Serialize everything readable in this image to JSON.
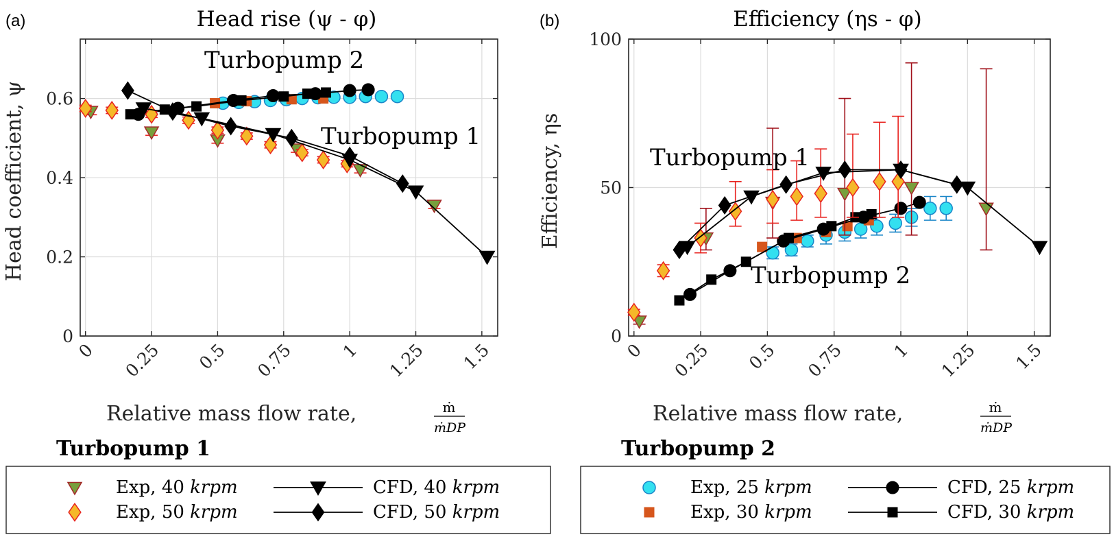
{
  "panels": [
    {
      "label": "(a)",
      "title": "Head rise (ψ - φ)",
      "ylabel": "Head coefficient, ψ",
      "xlabel": "Relative mass flow rate,"
    },
    {
      "label": "(b)",
      "title": "Efficiency (ηs - φ)",
      "ylabel": "Efficiency, ηs",
      "xlabel": "Relative mass flow rate,"
    }
  ],
  "xlabel_fraction": {
    "num": "ṁ",
    "den": "ṁDP"
  },
  "annotations": {
    "a": [
      "Turbopump 2",
      "Turbopump 1"
    ],
    "b": [
      "Turbopump 1",
      "Turbopump 2"
    ]
  },
  "legend": {
    "tp1_title": "Turbopump 1",
    "tp2_title": "Turbopump 2",
    "tp1": [
      {
        "label": "Exp, 40",
        "unit": "krpm"
      },
      {
        "label": "CFD, 40",
        "unit": "krpm"
      },
      {
        "label": "Exp, 50",
        "unit": "krpm"
      },
      {
        "label": "CFD, 50",
        "unit": "krpm"
      }
    ],
    "tp2": [
      {
        "label": "Exp, 25",
        "unit": "krpm"
      },
      {
        "label": "CFD, 25",
        "unit": "krpm"
      },
      {
        "label": "Exp, 30",
        "unit": "krpm"
      },
      {
        "label": "CFD, 30",
        "unit": "krpm"
      }
    ]
  },
  "colors": {
    "tri_fill": "#77a03c",
    "tri_edge": "#a52a2a",
    "dia_fill": "#f5b829",
    "dia_edge": "#e8231f",
    "circ_fill": "#33e0f0",
    "circ_edge": "#1a86c8",
    "sq_fill": "#d6561c",
    "err_red": "#e8231f",
    "err_dark": "#a0101a",
    "err_blue": "#1a86c8",
    "cfd": "#000000"
  },
  "chart_data": [
    {
      "type": "scatter",
      "title": "Head rise (ψ - φ)",
      "xlabel": "Relative mass flow rate, ṁ/ṁDP",
      "ylabel": "Head coefficient, ψ",
      "xlim": [
        -0.02,
        1.56
      ],
      "ylim": [
        0,
        0.75
      ],
      "xticks": [
        "0",
        "0.25",
        "0.5",
        "0.75",
        "1",
        "1.25",
        "1.5"
      ],
      "yticks": [
        "0",
        "0.2",
        "0.4",
        "0.6"
      ],
      "grid": true,
      "series": [
        {
          "name": "Exp, 40 krpm",
          "marker": "triangle",
          "x": [
            0.02,
            0.25,
            0.5,
            0.8,
            1.04,
            1.32
          ],
          "y": [
            0.567,
            0.515,
            0.495,
            0.472,
            0.42,
            0.33
          ],
          "err": [
            0.008,
            0.008,
            0.008,
            0.008,
            0.008,
            0.008
          ]
        },
        {
          "name": "Exp, 50 krpm",
          "marker": "diamond",
          "x": [
            0.0,
            0.1,
            0.25,
            0.39,
            0.5,
            0.61,
            0.7,
            0.82,
            0.9,
            0.99
          ],
          "y": [
            0.575,
            0.57,
            0.56,
            0.545,
            0.52,
            0.505,
            0.483,
            0.463,
            0.445,
            0.435
          ],
          "err": [
            0.008,
            0.008,
            0.008,
            0.008,
            0.008,
            0.008,
            0.008,
            0.008,
            0.008,
            0.008
          ]
        },
        {
          "name": "CFD, 40 krpm",
          "marker": "triangle-down-line",
          "x": [
            0.22,
            0.44,
            0.71,
            1.0,
            1.25,
            1.52
          ],
          "y": [
            0.575,
            0.55,
            0.51,
            0.445,
            0.365,
            0.2
          ]
        },
        {
          "name": "CFD, 50 krpm",
          "marker": "diamond-line",
          "x": [
            0.16,
            0.33,
            0.55,
            0.78,
            1.0,
            1.2
          ],
          "y": [
            0.62,
            0.567,
            0.53,
            0.5,
            0.455,
            0.385
          ]
        },
        {
          "name": "Exp, 25 krpm",
          "marker": "circle",
          "x": [
            0.52,
            0.58,
            0.64,
            0.7,
            0.76,
            0.82,
            0.88,
            0.94,
            1.0,
            1.06,
            1.12,
            1.18
          ],
          "y": [
            0.588,
            0.59,
            0.592,
            0.595,
            0.597,
            0.6,
            0.602,
            0.603,
            0.603,
            0.605,
            0.605,
            0.605
          ],
          "err": [
            0.006,
            0.006,
            0.006,
            0.006,
            0.006,
            0.006,
            0.006,
            0.006,
            0.006,
            0.006,
            0.006,
            0.006
          ]
        },
        {
          "name": "Exp, 30 krpm",
          "marker": "square",
          "x": [
            0.49,
            0.61,
            0.78,
            0.9
          ],
          "y": [
            0.588,
            0.593,
            0.598,
            0.6
          ]
        },
        {
          "name": "CFD, 25 krpm",
          "marker": "circle-line",
          "x": [
            0.2,
            0.35,
            0.56,
            0.71,
            0.87,
            1.0,
            1.07
          ],
          "y": [
            0.56,
            0.575,
            0.595,
            0.607,
            0.612,
            0.62,
            0.622
          ]
        },
        {
          "name": "CFD, 30 krpm",
          "marker": "square-line",
          "x": [
            0.17,
            0.3,
            0.42,
            0.59,
            0.75,
            0.84,
            0.91
          ],
          "y": [
            0.56,
            0.572,
            0.58,
            0.595,
            0.605,
            0.612,
            0.615
          ]
        }
      ]
    },
    {
      "type": "scatter",
      "title": "Efficiency (ηs - φ)",
      "xlabel": "Relative mass flow rate, ṁ/ṁDP",
      "ylabel": "Efficiency, ηs",
      "xlim": [
        -0.02,
        1.56
      ],
      "ylim": [
        0,
        100
      ],
      "xticks": [
        "0",
        "0.25",
        "0.5",
        "0.75",
        "1",
        "1.25",
        "1.5"
      ],
      "yticks": [
        "0",
        "50",
        "100"
      ],
      "grid": true,
      "series": [
        {
          "name": "Exp, 40 krpm",
          "marker": "triangle",
          "x": [
            0.02,
            0.27,
            0.52,
            0.79,
            1.04,
            1.32
          ],
          "y": [
            5,
            33,
            45,
            48,
            50,
            43
          ],
          "err_lo": [
            1,
            4,
            12,
            14,
            16,
            14
          ],
          "err_hi": [
            1,
            10,
            25,
            32,
            42,
            47
          ]
        },
        {
          "name": "Exp, 50 krpm",
          "marker": "diamond",
          "x": [
            0.0,
            0.11,
            0.25,
            0.38,
            0.52,
            0.61,
            0.7,
            0.82,
            0.92,
            0.99
          ],
          "y": [
            8,
            22,
            33,
            42,
            46,
            47,
            48,
            50,
            52,
            52
          ],
          "err_lo": [
            1,
            2,
            5,
            5,
            8,
            8,
            8,
            10,
            12,
            12
          ],
          "err_hi": [
            1,
            2,
            5,
            10,
            10,
            12,
            15,
            18,
            20,
            22
          ]
        },
        {
          "name": "CFD, 40 krpm",
          "marker": "triangle-down-line",
          "x": [
            0.2,
            0.44,
            0.71,
            1.0,
            1.25,
            1.52
          ],
          "y": [
            30,
            47,
            55,
            56,
            50,
            30
          ]
        },
        {
          "name": "CFD, 50 krpm",
          "marker": "diamond-line",
          "x": [
            0.17,
            0.34,
            0.57,
            0.79,
            1.0,
            1.21
          ],
          "y": [
            29,
            44,
            51,
            56,
            56,
            51
          ]
        },
        {
          "name": "Exp, 25 krpm",
          "marker": "circle",
          "x": [
            0.52,
            0.59,
            0.65,
            0.72,
            0.79,
            0.85,
            0.91,
            0.98,
            1.04,
            1.11,
            1.17
          ],
          "y": [
            28,
            29,
            32,
            34,
            35,
            36,
            37,
            38,
            40,
            43,
            43
          ],
          "err": [
            2,
            2,
            2,
            3,
            3,
            3,
            3,
            3,
            3,
            4,
            4
          ]
        },
        {
          "name": "Exp, 30 krpm",
          "marker": "square",
          "x": [
            0.48,
            0.61,
            0.72,
            0.8,
            0.88
          ],
          "y": [
            30,
            33,
            35,
            37,
            39
          ]
        },
        {
          "name": "CFD, 25 krpm",
          "marker": "circle-line",
          "x": [
            0.21,
            0.36,
            0.56,
            0.71,
            0.86,
            1.0,
            1.07
          ],
          "y": [
            14,
            22,
            32,
            36,
            40,
            43,
            45
          ]
        },
        {
          "name": "CFD, 30 krpm",
          "marker": "square-line",
          "x": [
            0.17,
            0.29,
            0.42,
            0.58,
            0.74,
            0.83,
            0.89
          ],
          "y": [
            12,
            19,
            25,
            33,
            37,
            40,
            41
          ]
        }
      ]
    }
  ]
}
